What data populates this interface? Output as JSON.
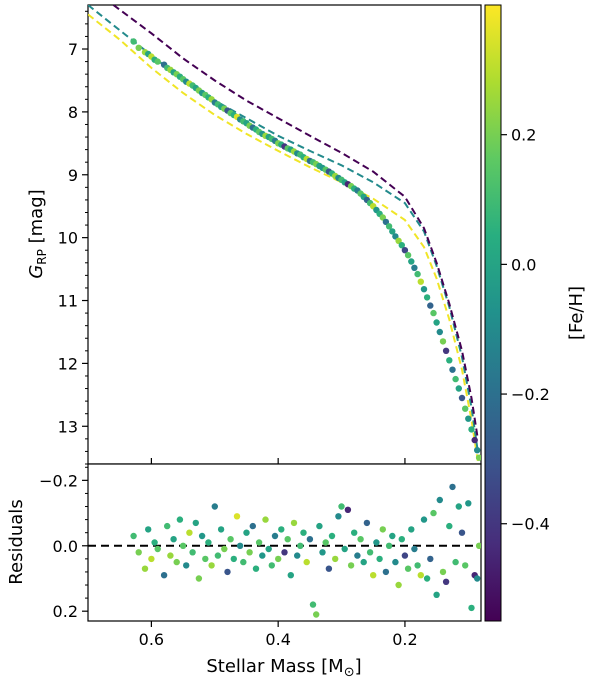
{
  "chart_data": {
    "type": "scatter",
    "colorbar": {
      "label": "[Fe/H]",
      "range": [
        -0.55,
        0.4
      ],
      "ticks": [
        0.2,
        0.0,
        -0.2,
        -0.4
      ],
      "tick_labels": [
        "0.2",
        "0.0",
        "−0.2",
        "−0.4"
      ],
      "colormap": [
        "#440154",
        "#472d7b",
        "#3b528b",
        "#2c728e",
        "#21918c",
        "#28ae80",
        "#5ec962",
        "#addc30",
        "#fde725"
      ]
    },
    "main_panel": {
      "xlim": [
        0.7,
        0.08
      ],
      "ylim": [
        13.6,
        6.3
      ],
      "ylabel_main": "G",
      "ylabel_sub": "RP",
      "ylabel_unit": " [mag]",
      "yticks": [
        7,
        8,
        9,
        10,
        11,
        12,
        13
      ],
      "ytick_labels": [
        "7",
        "8",
        "9",
        "10",
        "11",
        "12",
        "13"
      ],
      "model_curves": [
        {
          "feh": 0.38,
          "points": [
            [
              0.7,
              6.45
            ],
            [
              0.65,
              6.85
            ],
            [
              0.6,
              7.3
            ],
            [
              0.55,
              7.7
            ],
            [
              0.5,
              8.05
            ],
            [
              0.45,
              8.35
            ],
            [
              0.4,
              8.62
            ],
            [
              0.35,
              8.88
            ],
            [
              0.3,
              9.12
            ],
            [
              0.25,
              9.38
            ],
            [
              0.2,
              9.72
            ],
            [
              0.17,
              10.15
            ],
            [
              0.15,
              10.65
            ],
            [
              0.13,
              11.3
            ],
            [
              0.11,
              12.1
            ],
            [
              0.095,
              12.9
            ],
            [
              0.085,
              13.55
            ]
          ]
        },
        {
          "feh": -0.1,
          "points": [
            [
              0.7,
              6.3
            ],
            [
              0.65,
              6.7
            ],
            [
              0.6,
              7.1
            ],
            [
              0.55,
              7.5
            ],
            [
              0.5,
              7.82
            ],
            [
              0.45,
              8.1
            ],
            [
              0.4,
              8.38
            ],
            [
              0.35,
              8.62
            ],
            [
              0.3,
              8.85
            ],
            [
              0.25,
              9.12
            ],
            [
              0.2,
              9.45
            ],
            [
              0.17,
              9.9
            ],
            [
              0.15,
              10.45
            ],
            [
              0.13,
              11.1
            ],
            [
              0.11,
              11.9
            ],
            [
              0.095,
              12.7
            ],
            [
              0.085,
              13.4
            ]
          ]
        },
        {
          "feh": -0.55,
          "points": [
            [
              0.66,
              6.3
            ],
            [
              0.6,
              6.75
            ],
            [
              0.55,
              7.15
            ],
            [
              0.5,
              7.5
            ],
            [
              0.45,
              7.82
            ],
            [
              0.4,
              8.1
            ],
            [
              0.35,
              8.38
            ],
            [
              0.3,
              8.65
            ],
            [
              0.25,
              8.95
            ],
            [
              0.2,
              9.35
            ],
            [
              0.17,
              9.85
            ],
            [
              0.15,
              10.4
            ],
            [
              0.13,
              11.05
            ],
            [
              0.11,
              11.8
            ],
            [
              0.095,
              12.55
            ],
            [
              0.085,
              13.2
            ]
          ]
        }
      ]
    },
    "residual_panel": {
      "xlim": [
        0.7,
        0.08
      ],
      "ylim": [
        0.23,
        -0.25
      ],
      "ylabel": "Residuals",
      "yticks": [
        -0.2,
        0.0,
        0.2
      ],
      "ytick_labels": [
        "−0.2",
        "0.0",
        "0.2"
      ],
      "zero_line": 0.0
    },
    "xlabel_main": "Stellar Mass [M",
    "xlabel_sub": "⊙",
    "xlabel_end": "]",
    "xticks": [
      0.6,
      0.4,
      0.2
    ],
    "xtick_labels": [
      "0.6",
      "0.4",
      "0.2"
    ],
    "points": [
      [
        0.628,
        6.88,
        0.1,
        -0.03
      ],
      [
        0.62,
        6.98,
        0.2,
        0.02
      ],
      [
        0.61,
        7.05,
        0.25,
        0.07
      ],
      [
        0.605,
        7.08,
        0.0,
        -0.05
      ],
      [
        0.6,
        7.12,
        0.3,
        0.04
      ],
      [
        0.595,
        7.17,
        0.05,
        -0.01
      ],
      [
        0.59,
        7.2,
        0.15,
        0.01
      ],
      [
        0.58,
        7.25,
        -0.2,
        0.09
      ],
      [
        0.575,
        7.3,
        0.1,
        -0.06
      ],
      [
        0.57,
        7.33,
        0.25,
        0.03
      ],
      [
        0.565,
        7.37,
        0.0,
        -0.02
      ],
      [
        0.56,
        7.4,
        0.2,
        0.05
      ],
      [
        0.555,
        7.44,
        0.05,
        -0.08
      ],
      [
        0.55,
        7.48,
        0.15,
        0.0
      ],
      [
        0.545,
        7.52,
        -0.1,
        0.06
      ],
      [
        0.54,
        7.55,
        0.3,
        -0.04
      ],
      [
        0.535,
        7.58,
        0.1,
        0.02
      ],
      [
        0.53,
        7.62,
        0.0,
        -0.07
      ],
      [
        0.525,
        7.66,
        0.2,
        0.1
      ],
      [
        0.52,
        7.7,
        -0.05,
        -0.03
      ],
      [
        0.515,
        7.73,
        0.15,
        0.04
      ],
      [
        0.51,
        7.77,
        0.05,
        -0.01
      ],
      [
        0.505,
        7.8,
        0.25,
        0.06
      ],
      [
        0.5,
        7.85,
        -0.15,
        -0.12
      ],
      [
        0.495,
        7.88,
        0.1,
        0.03
      ],
      [
        0.49,
        7.92,
        0.0,
        -0.05
      ],
      [
        0.485,
        7.95,
        0.2,
        0.01
      ],
      [
        0.48,
        7.98,
        -0.3,
        0.08
      ],
      [
        0.475,
        8.02,
        0.15,
        -0.02
      ],
      [
        0.47,
        8.05,
        0.05,
        0.04
      ],
      [
        0.465,
        8.08,
        0.35,
        -0.09
      ],
      [
        0.46,
        8.12,
        -0.1,
        0.0
      ],
      [
        0.455,
        8.15,
        0.1,
        0.05
      ],
      [
        0.45,
        8.18,
        0.0,
        -0.04
      ],
      [
        0.445,
        8.22,
        0.2,
        0.02
      ],
      [
        0.44,
        8.25,
        -0.2,
        -0.06
      ],
      [
        0.435,
        8.28,
        0.05,
        0.07
      ],
      [
        0.43,
        8.32,
        0.15,
        -0.01
      ],
      [
        0.425,
        8.35,
        -0.05,
        0.03
      ],
      [
        0.42,
        8.38,
        0.25,
        -0.08
      ],
      [
        0.415,
        8.4,
        0.0,
        0.01
      ],
      [
        0.41,
        8.43,
        0.1,
        0.06
      ],
      [
        0.405,
        8.46,
        -0.15,
        -0.03
      ],
      [
        0.4,
        8.5,
        0.2,
        0.04
      ],
      [
        0.395,
        8.52,
        0.05,
        -0.05
      ],
      [
        0.39,
        8.55,
        -0.4,
        0.02
      ],
      [
        0.385,
        8.58,
        0.15,
        -0.02
      ],
      [
        0.38,
        8.6,
        0.0,
        0.09
      ],
      [
        0.375,
        8.63,
        0.25,
        -0.07
      ],
      [
        0.37,
        8.66,
        -0.1,
        0.03
      ],
      [
        0.365,
        8.68,
        0.1,
        0.0
      ],
      [
        0.36,
        8.72,
        0.05,
        -0.04
      ],
      [
        0.355,
        8.75,
        0.3,
        0.05
      ],
      [
        0.35,
        8.78,
        -0.2,
        -0.02
      ],
      [
        0.345,
        8.8,
        0.1,
        0.18
      ],
      [
        0.34,
        8.83,
        0.2,
        0.21
      ],
      [
        0.335,
        8.86,
        0.0,
        -0.06
      ],
      [
        0.33,
        8.89,
        -0.05,
        0.02
      ],
      [
        0.325,
        8.92,
        0.15,
        -0.01
      ],
      [
        0.32,
        8.95,
        -0.3,
        0.07
      ],
      [
        0.315,
        8.98,
        0.05,
        -0.03
      ],
      [
        0.31,
        9.02,
        0.25,
        0.04
      ],
      [
        0.305,
        9.05,
        -0.1,
        -0.09
      ],
      [
        0.3,
        9.08,
        0.1,
        -0.12
      ],
      [
        0.295,
        9.12,
        0.0,
        0.01
      ],
      [
        0.29,
        9.15,
        -0.45,
        -0.11
      ],
      [
        0.285,
        9.18,
        0.2,
        0.06
      ],
      [
        0.28,
        9.22,
        0.05,
        -0.04
      ],
      [
        0.275,
        9.25,
        -0.15,
        0.03
      ],
      [
        0.27,
        9.3,
        0.15,
        -0.02
      ],
      [
        0.265,
        9.35,
        0.0,
        0.05
      ],
      [
        0.26,
        9.4,
        -0.25,
        -0.07
      ],
      [
        0.255,
        9.45,
        0.1,
        0.02
      ],
      [
        0.25,
        9.5,
        0.3,
        0.09
      ],
      [
        0.245,
        9.56,
        -0.05,
        -0.01
      ],
      [
        0.24,
        9.62,
        0.05,
        0.04
      ],
      [
        0.235,
        9.68,
        0.2,
        -0.05
      ],
      [
        0.23,
        9.75,
        -0.2,
        0.08
      ],
      [
        0.225,
        9.82,
        0.1,
        0.0
      ],
      [
        0.22,
        9.9,
        0.0,
        -0.03
      ],
      [
        0.215,
        9.98,
        -0.1,
        0.05
      ],
      [
        0.21,
        10.05,
        0.25,
        0.12
      ],
      [
        0.205,
        10.12,
        0.05,
        -0.02
      ],
      [
        0.2,
        10.2,
        -0.35,
        0.03
      ],
      [
        0.195,
        10.28,
        0.15,
        0.07
      ],
      [
        0.19,
        10.38,
        0.0,
        -0.05
      ],
      [
        0.185,
        10.48,
        -0.15,
        0.01
      ],
      [
        0.18,
        10.58,
        0.1,
        0.06
      ],
      [
        0.175,
        10.7,
        0.3,
        0.09
      ],
      [
        0.17,
        10.82,
        -0.05,
        -0.08
      ],
      [
        0.165,
        10.95,
        0.05,
        0.1
      ],
      [
        0.16,
        11.08,
        -0.25,
        0.04
      ],
      [
        0.155,
        11.2,
        0.15,
        -0.1
      ],
      [
        0.15,
        11.35,
        0.0,
        0.15
      ],
      [
        0.145,
        11.5,
        -0.1,
        -0.14
      ],
      [
        0.14,
        11.65,
        0.2,
        0.08
      ],
      [
        0.135,
        11.8,
        -0.4,
        0.11
      ],
      [
        0.13,
        11.95,
        0.05,
        -0.06
      ],
      [
        0.125,
        12.1,
        -0.2,
        -0.18
      ],
      [
        0.12,
        12.25,
        0.1,
        0.05
      ],
      [
        0.115,
        12.4,
        0.0,
        -0.12
      ],
      [
        0.11,
        12.55,
        -0.3,
        -0.04
      ],
      [
        0.105,
        12.72,
        0.15,
        0.06
      ],
      [
        0.1,
        12.88,
        -0.05,
        -0.13
      ],
      [
        0.095,
        13.05,
        0.05,
        0.19
      ],
      [
        0.09,
        13.22,
        -0.45,
        0.09
      ],
      [
        0.086,
        13.38,
        -0.1,
        0.1
      ],
      [
        0.083,
        13.5,
        0.2,
        0.0
      ]
    ]
  }
}
